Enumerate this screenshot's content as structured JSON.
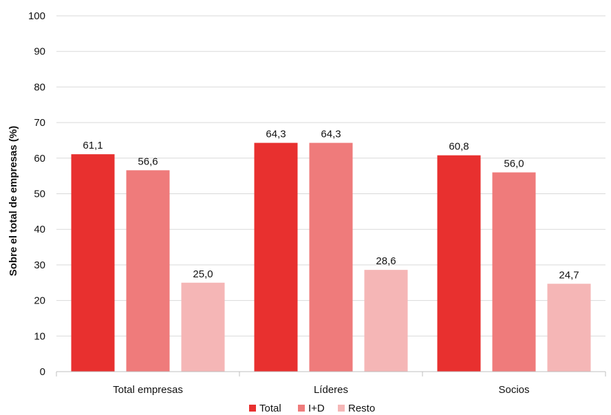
{
  "chart_data": {
    "type": "bar",
    "categories": [
      "Total empresas",
      "Líderes",
      "Socios"
    ],
    "series": [
      {
        "name": "Total",
        "values": [
          61.1,
          64.3,
          60.8
        ],
        "labels": [
          "61,1",
          "64,3",
          "60,8"
        ],
        "color": "#e8302f"
      },
      {
        "name": "I+D",
        "values": [
          56.6,
          64.3,
          56.0
        ],
        "labels": [
          "56,6",
          "64,3",
          "56,0"
        ],
        "color": "#ef7b7b"
      },
      {
        "name": "Resto",
        "values": [
          25.0,
          28.6,
          24.7
        ],
        "labels": [
          "25,0",
          "28,6",
          "24,7"
        ],
        "color": "#f5b6b6"
      }
    ],
    "ylabel": "Sobre el total de empresas (%)",
    "ylim": [
      0,
      100
    ],
    "yticks": [
      "0",
      "10",
      "20",
      "30",
      "40",
      "50",
      "60",
      "70",
      "80",
      "90",
      "100"
    ],
    "grid": true,
    "legend_position": "bottom"
  }
}
